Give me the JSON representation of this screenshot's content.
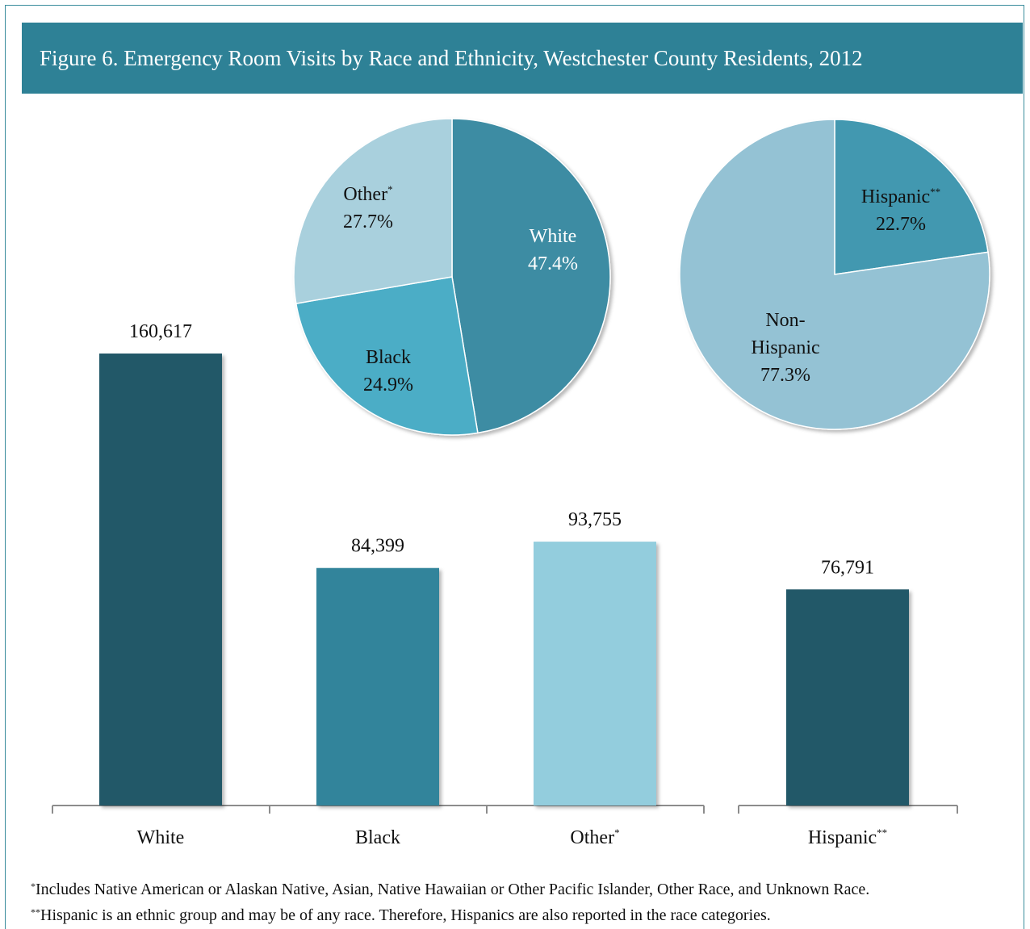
{
  "title": "Figure 6.  Emergency Room Visits by Race and Ethnicity, Westchester County Residents, 2012",
  "colors": {
    "dark": "#215867",
    "mid": "#31849b",
    "light": "#93cddd",
    "frame": "#3a8c9c"
  },
  "chart_data": [
    {
      "type": "bar",
      "categories": [
        "White",
        "Black",
        "Other*",
        "Hispanic**"
      ],
      "values": [
        160617,
        84399,
        93755,
        76791
      ],
      "value_labels": [
        "160,617",
        "84,399",
        "93,755",
        "76,791"
      ],
      "colors": [
        "#215867",
        "#31849b",
        "#93cddd",
        "#215867"
      ],
      "title": "",
      "xlabel": "",
      "ylabel": "",
      "grid": false
    },
    {
      "type": "pie",
      "labels": [
        "White",
        "Black",
        "Other*"
      ],
      "values": [
        47.4,
        24.9,
        27.7
      ],
      "value_labels": [
        "47.4%",
        "24.9%",
        "27.7%"
      ],
      "colors": [
        "#3d8ca3",
        "#4badc6",
        "#a9d0dd"
      ]
    },
    {
      "type": "pie",
      "labels": [
        "Hispanic**",
        "Non-Hispanic"
      ],
      "values": [
        22.7,
        77.3
      ],
      "value_labels": [
        "22.7%",
        "77.3%"
      ],
      "colors": [
        "#4298b0",
        "#94c2d4"
      ]
    }
  ],
  "footnotes": [
    {
      "mark": "*",
      "text": "Includes Native American or Alaskan Native, Asian, Native Hawaiian or Other Pacific Islander, Other Race, and Unknown Race."
    },
    {
      "mark": "**",
      "text": "Hispanic is an ethnic group and may be of any race.  Therefore, Hispanics are also reported in the race categories."
    }
  ]
}
